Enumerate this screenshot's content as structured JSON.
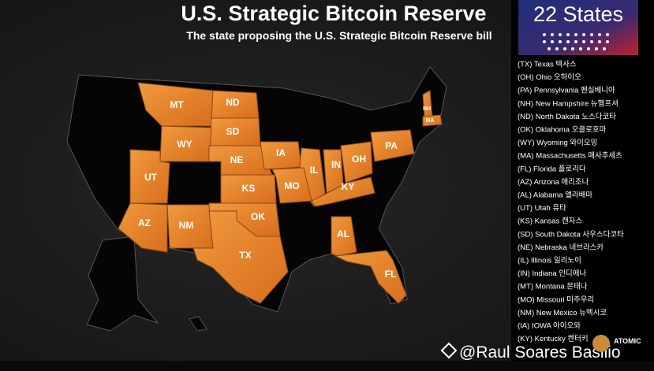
{
  "header": {
    "title": "U.S. Strategic Bitcoin Reserve",
    "subtitle": "The state proposing the U.S. Strategic Bitcoin Reserve bill"
  },
  "badge": {
    "label": "22 States"
  },
  "map": {
    "labels": [
      "MT",
      "ND",
      "SD",
      "WY",
      "NE",
      "UT",
      "IA",
      "IL",
      "IN",
      "OH",
      "PA",
      "KS",
      "MO",
      "KY",
      "OK",
      "AZ",
      "NM",
      "TX",
      "AL",
      "FL",
      "NH",
      "MA"
    ]
  },
  "legend": {
    "items": [
      "(TX) Texas 텍사스",
      "(OH) Ohio 오하이오",
      "(PA) Pennsylvania 펜실베니아",
      "(NH) New Hampshire 뉴햄프셔",
      "(ND) North Dakota 노스다코타",
      "(OK) Oklahoma 오클로호마",
      "(WY) Wyoming 와이오밍",
      "(MA) Massachusetts 매사추세츠",
      "(FL) Florida 플로리다",
      "(AZ) Arizona 애리조나",
      "(AL) Alabama 앨라배마",
      "(UT) Utah 유타",
      "(KS) Kansas 캔자스",
      "(SD) South Dakota 사우스다코타",
      "(NE) Nebraska 네브라스카",
      "(IL) Illinois 일리노이",
      "(IN) Indiana 인디애나",
      "(MT) Montana 몬태나",
      "(MO) Missouri 미주우리",
      "(NM) New Mexico 뉴멕시코",
      "(IA) IOWA 아이오와",
      "(KY) Kentucky 켄터키"
    ]
  },
  "watermark": {
    "handle": "@Raul Soares Basilio",
    "logo": "ATOMIC"
  }
}
